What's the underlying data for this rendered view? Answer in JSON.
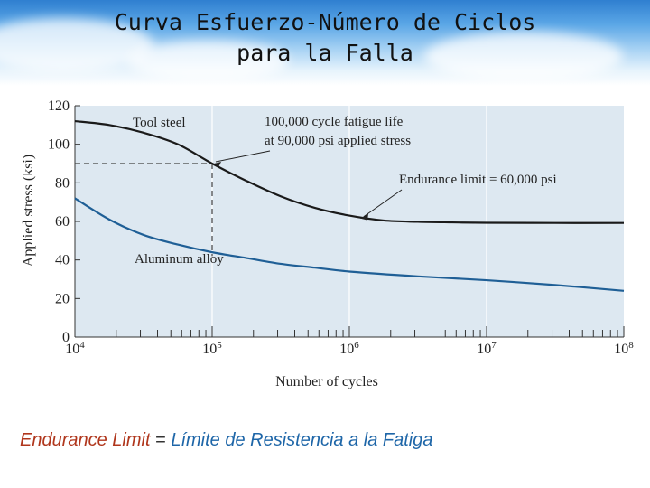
{
  "slide": {
    "title_line1": "Curva Esfuerzo-Número de Ciclos",
    "title_line2": "para la Falla",
    "caption": {
      "term": "Endurance Limit",
      "equals": "=",
      "translation": "Límite de Resistencia a la Fatiga"
    }
  },
  "colors": {
    "plot_background": "#dde8f1",
    "tool_steel": "#1a1a1a",
    "aluminum": "#1f5f96",
    "grid": "#ffffff"
  },
  "chart_data": {
    "type": "line",
    "xscale": "log",
    "xlabel": "Number of cycles",
    "ylabel": "Applied stress (ksi)",
    "xlim": [
      10000,
      100000000
    ],
    "ylim": [
      0,
      120
    ],
    "x_ticks": [
      {
        "value": 10000,
        "base": "10",
        "exp": "4"
      },
      {
        "value": 100000,
        "base": "10",
        "exp": "5"
      },
      {
        "value": 1000000,
        "base": "10",
        "exp": "6"
      },
      {
        "value": 10000000,
        "base": "10",
        "exp": "7"
      },
      {
        "value": 100000000,
        "base": "10",
        "exp": "8"
      }
    ],
    "y_ticks": [
      0,
      20,
      40,
      60,
      80,
      100,
      120
    ],
    "series": [
      {
        "name": "Tool steel",
        "x": [
          10000,
          17800,
          31600,
          56200,
          100000,
          178000,
          316000,
          562000,
          1000000,
          1780000,
          3160000,
          5620000,
          10000000,
          31600000,
          100000000
        ],
        "y": [
          112,
          110,
          106,
          100,
          90,
          81,
          73,
          67,
          63,
          60.5,
          59.8,
          59.5,
          59.3,
          59.2,
          59.2
        ]
      },
      {
        "name": "Aluminum alloy",
        "x": [
          10000,
          17800,
          31600,
          56200,
          100000,
          178000,
          316000,
          562000,
          1000000,
          3160000,
          10000000,
          31600000,
          100000000
        ],
        "y": [
          72,
          61,
          53,
          48,
          44,
          41,
          38,
          36,
          34,
          31.5,
          29.5,
          27,
          24
        ]
      }
    ],
    "annotations": [
      {
        "text_lines": [
          "100,000 cycle fatigue life",
          "at 90,000 psi applied stress"
        ],
        "x": 100000,
        "y": 90
      },
      {
        "text_lines": [
          "Endurance limit = 60,000 psi"
        ],
        "x": 1000000,
        "y": 63
      }
    ],
    "reference_lines": [
      {
        "x": 100000,
        "y": 90,
        "style": "dashed"
      }
    ]
  }
}
